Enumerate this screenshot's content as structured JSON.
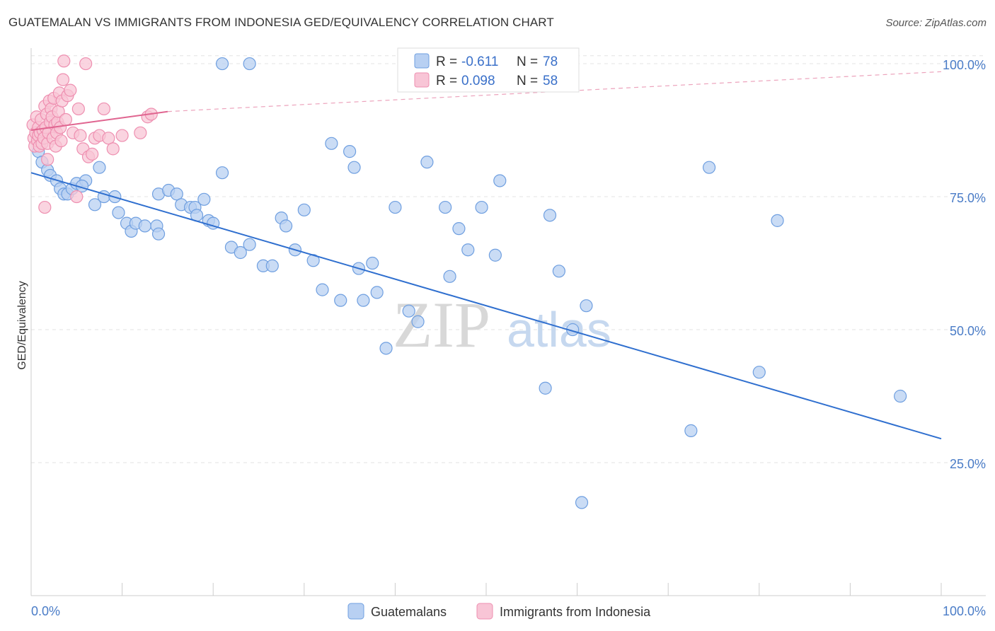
{
  "chart_data": {
    "type": "scatter",
    "title": "GUATEMALAN VS IMMIGRANTS FROM INDONESIA GED/EQUIVALENCY CORRELATION CHART",
    "source": "Source: ZipAtlas.com",
    "xlabel": "",
    "ylabel": "GED/Equivalency",
    "xlim": [
      0,
      100
    ],
    "ylim": [
      0,
      102
    ],
    "x_tick_labels": [
      "0.0%",
      "100.0%"
    ],
    "y_ticks": [
      25,
      50,
      75,
      100
    ],
    "y_tick_labels": [
      "25.0%",
      "50.0%",
      "75.0%",
      "100.0%"
    ],
    "watermark": {
      "zip": "ZIP",
      "atlas": "atlas"
    },
    "legend": [
      {
        "r_label": "R =",
        "r_value": "-0.611",
        "n_label": "N =",
        "n_value": "78"
      },
      {
        "r_label": "R =",
        "r_value": "0.098",
        "n_label": "N =",
        "n_value": "58"
      }
    ],
    "series": [
      {
        "name": "Guatemalans",
        "color": "#6f9fe0",
        "fill": "#b8d0f2",
        "trend": {
          "x": [
            0,
            100
          ],
          "y": [
            79.5,
            29.5
          ],
          "dashed_until": 100,
          "line_color": "#2f6fcf"
        },
        "points": [
          [
            0.8,
            83.5
          ],
          [
            1.2,
            81.5
          ],
          [
            1.8,
            80
          ],
          [
            2.1,
            79
          ],
          [
            2.8,
            78
          ],
          [
            3.2,
            76.5
          ],
          [
            3.6,
            75.5
          ],
          [
            4,
            75.5
          ],
          [
            4.5,
            76.5
          ],
          [
            5,
            77.5
          ],
          [
            6,
            78
          ],
          [
            7.5,
            80.5
          ],
          [
            5.6,
            77
          ],
          [
            7,
            73.5
          ],
          [
            8,
            75
          ],
          [
            9.2,
            75
          ],
          [
            9.6,
            72
          ],
          [
            10.5,
            70
          ],
          [
            11,
            68.5
          ],
          [
            11.5,
            70
          ],
          [
            12.5,
            69.5
          ],
          [
            13.8,
            69.5
          ],
          [
            14,
            75.5
          ],
          [
            15.1,
            76.2
          ],
          [
            16,
            75.5
          ],
          [
            16.5,
            73.5
          ],
          [
            17.5,
            73
          ],
          [
            18,
            73
          ],
          [
            18.2,
            71.5
          ],
          [
            19,
            74.5
          ],
          [
            19.5,
            70.5
          ],
          [
            20,
            70
          ],
          [
            21,
            79.5
          ],
          [
            22,
            65.5
          ],
          [
            23,
            64.5
          ],
          [
            24,
            66
          ],
          [
            25.5,
            62
          ],
          [
            26.5,
            62
          ],
          [
            27.5,
            71
          ],
          [
            28,
            69.5
          ],
          [
            29,
            65
          ],
          [
            30,
            72.5
          ],
          [
            31,
            63
          ],
          [
            32,
            57.5
          ],
          [
            33,
            85
          ],
          [
            34,
            55.5
          ],
          [
            35,
            83.5
          ],
          [
            35.5,
            80.5
          ],
          [
            36,
            61.5
          ],
          [
            36.5,
            55.5
          ],
          [
            37.5,
            62.5
          ],
          [
            38,
            57
          ],
          [
            39,
            46.5
          ],
          [
            40,
            73
          ],
          [
            41.5,
            53.5
          ],
          [
            42.5,
            51.5
          ],
          [
            43.5,
            81.5
          ],
          [
            45.5,
            73
          ],
          [
            46,
            60
          ],
          [
            47,
            69
          ],
          [
            48,
            65
          ],
          [
            49.5,
            73
          ],
          [
            51,
            64
          ],
          [
            51.5,
            78
          ],
          [
            56.5,
            39
          ],
          [
            57,
            71.5
          ],
          [
            58,
            61
          ],
          [
            59.5,
            50
          ],
          [
            60.5,
            17.5
          ],
          [
            61,
            54.5
          ],
          [
            72.5,
            31
          ],
          [
            74.5,
            80.5
          ],
          [
            80,
            42
          ],
          [
            82,
            70.5
          ],
          [
            95.5,
            37.5
          ],
          [
            21,
            100
          ],
          [
            24,
            100
          ],
          [
            14,
            68
          ]
        ]
      },
      {
        "name": "Immigrants from Indonesia",
        "color": "#ee8fb0",
        "fill": "#f8c5d6",
        "trend": {
          "x": [
            0,
            15
          ],
          "y": [
            87.5,
            91
          ],
          "dashed_until": 100,
          "dash_end_y": 98.5,
          "line_color": "#e06590"
        },
        "points": [
          [
            0.2,
            88.5
          ],
          [
            0.3,
            86
          ],
          [
            0.4,
            84.5
          ],
          [
            0.5,
            87
          ],
          [
            0.6,
            90
          ],
          [
            0.7,
            85.5
          ],
          [
            0.8,
            88
          ],
          [
            0.8,
            86.5
          ],
          [
            0.9,
            84.5
          ],
          [
            1,
            87
          ],
          [
            1.1,
            89.5
          ],
          [
            1.2,
            85
          ],
          [
            1.3,
            87.5
          ],
          [
            1.4,
            86
          ],
          [
            1.5,
            92
          ],
          [
            1.6,
            88
          ],
          [
            1.7,
            90.5
          ],
          [
            1.8,
            85
          ],
          [
            1.9,
            87
          ],
          [
            2,
            93
          ],
          [
            2.1,
            89
          ],
          [
            2.2,
            91.5
          ],
          [
            2.3,
            90
          ],
          [
            2.4,
            86
          ],
          [
            2.5,
            93.5
          ],
          [
            2.6,
            88.5
          ],
          [
            2.7,
            84.5
          ],
          [
            2.8,
            87
          ],
          [
            2.9,
            89
          ],
          [
            3,
            91
          ],
          [
            3.1,
            94.5
          ],
          [
            3.2,
            88
          ],
          [
            3.3,
            85.5
          ],
          [
            3.4,
            93
          ],
          [
            3.5,
            97
          ],
          [
            3.6,
            100.5
          ],
          [
            3.8,
            89.5
          ],
          [
            4,
            94
          ],
          [
            4.3,
            95
          ],
          [
            4.6,
            87
          ],
          [
            5,
            75
          ],
          [
            5.2,
            91.5
          ],
          [
            5.4,
            86.5
          ],
          [
            5.7,
            84
          ],
          [
            6,
            100
          ],
          [
            6.3,
            82.5
          ],
          [
            6.7,
            83
          ],
          [
            7,
            86
          ],
          [
            7.5,
            86.5
          ],
          [
            8,
            91.5
          ],
          [
            8.5,
            86
          ],
          [
            9,
            84
          ],
          [
            10,
            86.5
          ],
          [
            12,
            87
          ],
          [
            12.8,
            90
          ],
          [
            13.2,
            90.5
          ],
          [
            1.5,
            73
          ],
          [
            1.8,
            82
          ]
        ]
      }
    ]
  }
}
